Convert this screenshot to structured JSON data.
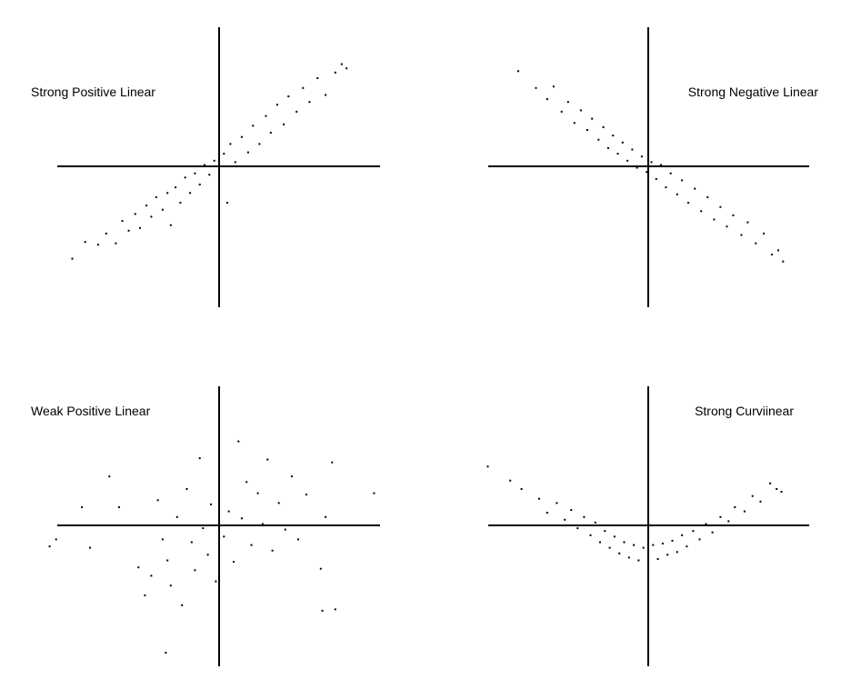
{
  "chart_data": [
    {
      "type": "scatter",
      "title": "Strong Positive Linear",
      "xlim": [
        -10,
        10
      ],
      "ylim": [
        -10,
        10
      ],
      "grid": false,
      "axes": "crossing-at-origin",
      "color": "#000000",
      "points": [
        [
          -9.1,
          -6.6
        ],
        [
          -8.3,
          -5.4
        ],
        [
          -7.5,
          -5.6
        ],
        [
          -7.0,
          -4.8
        ],
        [
          -6.4,
          -5.5
        ],
        [
          -6.0,
          -3.9
        ],
        [
          -5.6,
          -4.6
        ],
        [
          -5.2,
          -3.4
        ],
        [
          -4.9,
          -4.4
        ],
        [
          -4.5,
          -2.8
        ],
        [
          -4.2,
          -3.6
        ],
        [
          -3.9,
          -2.2
        ],
        [
          -3.5,
          -3.1
        ],
        [
          -3.2,
          -1.9
        ],
        [
          -3.0,
          -4.2
        ],
        [
          -2.7,
          -1.5
        ],
        [
          -2.4,
          -2.6
        ],
        [
          -2.1,
          -0.8
        ],
        [
          -1.8,
          -1.9
        ],
        [
          -1.5,
          -0.5
        ],
        [
          -1.2,
          -1.3
        ],
        [
          -0.9,
          0.1
        ],
        [
          -0.6,
          -0.6
        ],
        [
          -0.3,
          0.4
        ],
        [
          0.0,
          -0.3
        ],
        [
          0.3,
          0.9
        ],
        [
          0.5,
          -2.6
        ],
        [
          0.7,
          1.6
        ],
        [
          1.0,
          0.3
        ],
        [
          1.4,
          2.1
        ],
        [
          1.8,
          1.0
        ],
        [
          2.1,
          2.9
        ],
        [
          2.5,
          1.6
        ],
        [
          2.9,
          3.6
        ],
        [
          3.2,
          2.4
        ],
        [
          3.6,
          4.4
        ],
        [
          4.0,
          3.0
        ],
        [
          4.3,
          5.0
        ],
        [
          4.8,
          3.9
        ],
        [
          5.2,
          5.6
        ],
        [
          5.6,
          4.6
        ],
        [
          6.1,
          6.3
        ],
        [
          6.6,
          5.1
        ],
        [
          7.2,
          6.7
        ],
        [
          7.6,
          7.3
        ],
        [
          7.9,
          7.0
        ]
      ]
    },
    {
      "type": "scatter",
      "title": "Strong Negative Linear",
      "xlim": [
        -10,
        10
      ],
      "ylim": [
        -10,
        10
      ],
      "grid": false,
      "axes": "crossing-at-origin",
      "color": "#000000",
      "points": [
        [
          -8.1,
          6.8
        ],
        [
          -7.0,
          5.6
        ],
        [
          -6.3,
          4.8
        ],
        [
          -5.9,
          5.7
        ],
        [
          -5.4,
          3.9
        ],
        [
          -5.0,
          4.6
        ],
        [
          -4.6,
          3.1
        ],
        [
          -4.2,
          4.0
        ],
        [
          -3.8,
          2.6
        ],
        [
          -3.5,
          3.4
        ],
        [
          -3.1,
          1.9
        ],
        [
          -2.8,
          2.8
        ],
        [
          -2.5,
          1.3
        ],
        [
          -2.2,
          2.2
        ],
        [
          -1.9,
          0.9
        ],
        [
          -1.6,
          1.7
        ],
        [
          -1.3,
          0.4
        ],
        [
          -1.0,
          1.2
        ],
        [
          -0.7,
          -0.1
        ],
        [
          -0.4,
          0.7
        ],
        [
          -0.1,
          -0.4
        ],
        [
          0.2,
          0.3
        ],
        [
          0.5,
          -0.9
        ],
        [
          0.8,
          0.1
        ],
        [
          1.1,
          -1.5
        ],
        [
          1.4,
          -0.5
        ],
        [
          1.8,
          -2.0
        ],
        [
          2.1,
          -1.0
        ],
        [
          2.5,
          -2.6
        ],
        [
          2.9,
          -1.6
        ],
        [
          3.3,
          -3.2
        ],
        [
          3.7,
          -2.2
        ],
        [
          4.1,
          -3.8
        ],
        [
          4.5,
          -2.9
        ],
        [
          4.9,
          -4.3
        ],
        [
          5.3,
          -3.5
        ],
        [
          5.8,
          -4.9
        ],
        [
          6.2,
          -4.0
        ],
        [
          6.7,
          -5.5
        ],
        [
          7.2,
          -4.8
        ],
        [
          7.7,
          -6.3
        ],
        [
          8.1,
          -6.0
        ],
        [
          8.4,
          -6.8
        ]
      ]
    },
    {
      "type": "scatter",
      "title": "Weak Positive Linear",
      "xlim": [
        -10,
        10
      ],
      "ylim": [
        -10,
        10
      ],
      "grid": false,
      "axes": "crossing-at-origin",
      "color": "#000000",
      "points": [
        [
          -10.5,
          -1.5
        ],
        [
          -8.5,
          1.3
        ],
        [
          -8.0,
          -1.6
        ],
        [
          -6.8,
          3.5
        ],
        [
          -6.2,
          1.3
        ],
        [
          -5.0,
          -3.0
        ],
        [
          -4.6,
          -5.0
        ],
        [
          -4.2,
          -3.6
        ],
        [
          -3.8,
          1.8
        ],
        [
          -3.5,
          -1.0
        ],
        [
          -3.2,
          -2.5
        ],
        [
          -3.0,
          -4.3
        ],
        [
          -2.6,
          0.6
        ],
        [
          -2.3,
          -5.7
        ],
        [
          -2.0,
          2.6
        ],
        [
          -1.7,
          -1.2
        ],
        [
          -1.5,
          -3.2
        ],
        [
          -1.2,
          4.8
        ],
        [
          -1.0,
          -0.2
        ],
        [
          -0.7,
          -2.1
        ],
        [
          -0.5,
          1.5
        ],
        [
          -0.2,
          -4.0
        ],
        [
          0.0,
          3.6
        ],
        [
          0.3,
          -0.8
        ],
        [
          0.6,
          1.0
        ],
        [
          0.9,
          -2.6
        ],
        [
          1.2,
          6.0
        ],
        [
          1.4,
          0.5
        ],
        [
          1.7,
          3.1
        ],
        [
          2.0,
          -1.4
        ],
        [
          2.4,
          2.3
        ],
        [
          2.7,
          0.1
        ],
        [
          3.0,
          4.7
        ],
        [
          3.3,
          -1.8
        ],
        [
          3.7,
          1.6
        ],
        [
          4.1,
          -0.3
        ],
        [
          4.5,
          3.5
        ],
        [
          4.9,
          -1.0
        ],
        [
          5.4,
          2.2
        ],
        [
          6.3,
          -3.1
        ],
        [
          6.6,
          0.6
        ],
        [
          7.0,
          4.5
        ],
        [
          7.2,
          -6.0
        ],
        [
          6.4,
          -6.1
        ],
        [
          9.6,
          2.3
        ],
        [
          -3.3,
          -9.1
        ],
        [
          -10.1,
          -1.0
        ]
      ]
    },
    {
      "type": "scatter",
      "title": "Strong Curviinear",
      "xlim": [
        -10,
        10
      ],
      "ylim": [
        -10,
        10
      ],
      "grid": false,
      "axes": "crossing-at-origin",
      "color": "#000000",
      "points": [
        [
          -10.0,
          4.2
        ],
        [
          -8.6,
          3.2
        ],
        [
          -7.9,
          2.6
        ],
        [
          -6.8,
          1.9
        ],
        [
          -6.3,
          0.9
        ],
        [
          -5.7,
          1.6
        ],
        [
          -5.2,
          0.4
        ],
        [
          -4.8,
          1.1
        ],
        [
          -4.4,
          -0.2
        ],
        [
          -4.0,
          0.6
        ],
        [
          -3.6,
          -0.7
        ],
        [
          -3.3,
          0.2
        ],
        [
          -3.0,
          -1.2
        ],
        [
          -2.7,
          -0.4
        ],
        [
          -2.4,
          -1.6
        ],
        [
          -2.1,
          -0.8
        ],
        [
          -1.8,
          -2.0
        ],
        [
          -1.5,
          -1.2
        ],
        [
          -1.2,
          -2.3
        ],
        [
          -0.9,
          -1.4
        ],
        [
          -0.6,
          -2.5
        ],
        [
          -0.3,
          -1.6
        ],
        [
          0.0,
          -2.3
        ],
        [
          0.3,
          -1.4
        ],
        [
          0.6,
          -2.4
        ],
        [
          0.9,
          -1.3
        ],
        [
          1.2,
          -2.1
        ],
        [
          1.5,
          -1.1
        ],
        [
          1.8,
          -1.9
        ],
        [
          2.1,
          -0.7
        ],
        [
          2.4,
          -1.5
        ],
        [
          2.8,
          -0.4
        ],
        [
          3.2,
          -1.0
        ],
        [
          3.6,
          0.1
        ],
        [
          4.0,
          -0.5
        ],
        [
          4.5,
          0.6
        ],
        [
          5.0,
          0.3
        ],
        [
          5.4,
          1.3
        ],
        [
          6.0,
          1.0
        ],
        [
          6.5,
          2.1
        ],
        [
          7.0,
          1.7
        ],
        [
          7.6,
          3.0
        ],
        [
          8.0,
          2.6
        ],
        [
          8.3,
          2.4
        ]
      ]
    }
  ]
}
